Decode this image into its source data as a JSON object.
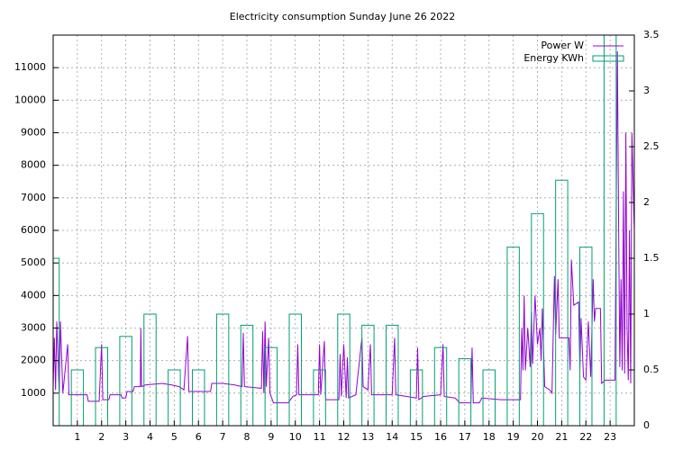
{
  "chart_data": {
    "type": "line",
    "title": "Electricity consumption Sunday June 26 2022",
    "xlim": [
      0,
      24
    ],
    "xticks": [
      1,
      2,
      3,
      4,
      5,
      6,
      7,
      8,
      9,
      10,
      11,
      12,
      13,
      14,
      15,
      16,
      17,
      18,
      19,
      20,
      21,
      22,
      23
    ],
    "ylim": [
      0,
      12000
    ],
    "yticks": [
      1000,
      2000,
      3000,
      4000,
      5000,
      6000,
      7000,
      8000,
      9000,
      10000,
      11000
    ],
    "y2lim": [
      0,
      3.5
    ],
    "y2ticks": [
      0,
      0.5,
      1,
      1.5,
      2,
      2.5,
      3,
      3.5
    ],
    "grid": true,
    "legend": "top-right",
    "series": [
      {
        "name": "Power W",
        "type": "line",
        "color": "#9400d3",
        "x": [
          0.0,
          0.05,
          0.1,
          0.15,
          0.25,
          0.3,
          0.4,
          0.6,
          0.65,
          1.0,
          1.4,
          1.45,
          1.9,
          2.0,
          2.05,
          2.3,
          2.35,
          2.8,
          2.85,
          3.0,
          3.05,
          3.3,
          3.35,
          3.6,
          3.62,
          3.65,
          3.8,
          4.5,
          4.9,
          5.2,
          5.4,
          5.55,
          5.6,
          6.5,
          6.55,
          7.0,
          7.5,
          7.8,
          7.85,
          7.9,
          8.6,
          8.65,
          8.7,
          8.75,
          8.8,
          8.9,
          8.95,
          9.1,
          9.7,
          9.9,
          10.05,
          10.1,
          10.15,
          10.95,
          11.0,
          11.05,
          11.2,
          11.25,
          11.8,
          11.85,
          11.9,
          12.0,
          12.1,
          12.15,
          12.2,
          12.5,
          12.75,
          12.8,
          13.0,
          13.1,
          13.15,
          14.0,
          14.1,
          14.15,
          14.6,
          15.0,
          15.05,
          15.1,
          15.3,
          16.0,
          16.1,
          16.15,
          16.6,
          16.8,
          17.25,
          17.3,
          17.35,
          17.6,
          17.7,
          18.5,
          18.9,
          19.3,
          19.35,
          19.4,
          19.45,
          19.5,
          19.6,
          19.7,
          19.75,
          19.8,
          19.9,
          20.0,
          20.1,
          20.15,
          20.2,
          20.3,
          20.5,
          20.6,
          20.7,
          20.75,
          20.85,
          20.9,
          21.3,
          21.35,
          21.4,
          21.5,
          21.7,
          21.75,
          21.8,
          21.9,
          22.0,
          22.1,
          22.2,
          22.3,
          22.35,
          22.4,
          22.6,
          22.65,
          22.8,
          23.2,
          23.3,
          23.35,
          23.4,
          23.45,
          23.5,
          23.55,
          23.6,
          23.65,
          23.7,
          23.75,
          23.8,
          23.85,
          23.9,
          24.0
        ],
        "values": [
          1200,
          2700,
          1100,
          3200,
          1000,
          3200,
          1000,
          2500,
          950,
          950,
          950,
          750,
          750,
          2500,
          800,
          800,
          950,
          950,
          850,
          850,
          1050,
          1050,
          1200,
          1200,
          3000,
          1200,
          1250,
          1300,
          1250,
          1200,
          1100,
          2750,
          1050,
          1050,
          1300,
          1300,
          1250,
          1200,
          2850,
          1200,
          1150,
          2900,
          1000,
          3200,
          1200,
          2700,
          1000,
          700,
          700,
          900,
          950,
          2500,
          950,
          950,
          2500,
          950,
          2600,
          800,
          800,
          2200,
          900,
          2500,
          850,
          2100,
          850,
          950,
          2700,
          1200,
          1100,
          2500,
          950,
          950,
          2700,
          950,
          900,
          850,
          2400,
          800,
          900,
          950,
          2500,
          900,
          850,
          700,
          700,
          2400,
          700,
          700,
          850,
          800,
          800,
          800,
          3000,
          1700,
          4000,
          1700,
          3000,
          1800,
          3500,
          1900,
          4000,
          2500,
          3000,
          2000,
          3600,
          1200,
          1100,
          1000,
          4600,
          2800,
          4500,
          2700,
          2700,
          1700,
          5100,
          3700,
          3800,
          1700,
          3300,
          1500,
          1400,
          3200,
          1500,
          4500,
          3200,
          3600,
          3600,
          1300,
          1400,
          1400,
          11500,
          6300,
          1800,
          4500,
          1700,
          7200,
          1600,
          9000,
          3000,
          1400,
          6000,
          1300,
          9000,
          6000
        ]
      },
      {
        "name": "Energy KWh",
        "type": "bar",
        "color": "#009e73",
        "axis": "y2",
        "x": [
          0,
          1,
          2,
          3,
          4,
          5,
          6,
          7,
          8,
          9,
          10,
          11,
          12,
          13,
          14,
          15,
          16,
          17,
          18,
          19,
          20,
          21,
          22,
          23
        ],
        "values": [
          1.5,
          0.5,
          0.7,
          0.8,
          1.0,
          0.5,
          0.5,
          1.0,
          0.9,
          0.7,
          1.0,
          0.5,
          1.0,
          0.9,
          0.9,
          0.5,
          0.7,
          0.6,
          0.5,
          1.6,
          1.9,
          2.2,
          1.6,
          3.6
        ]
      }
    ]
  }
}
